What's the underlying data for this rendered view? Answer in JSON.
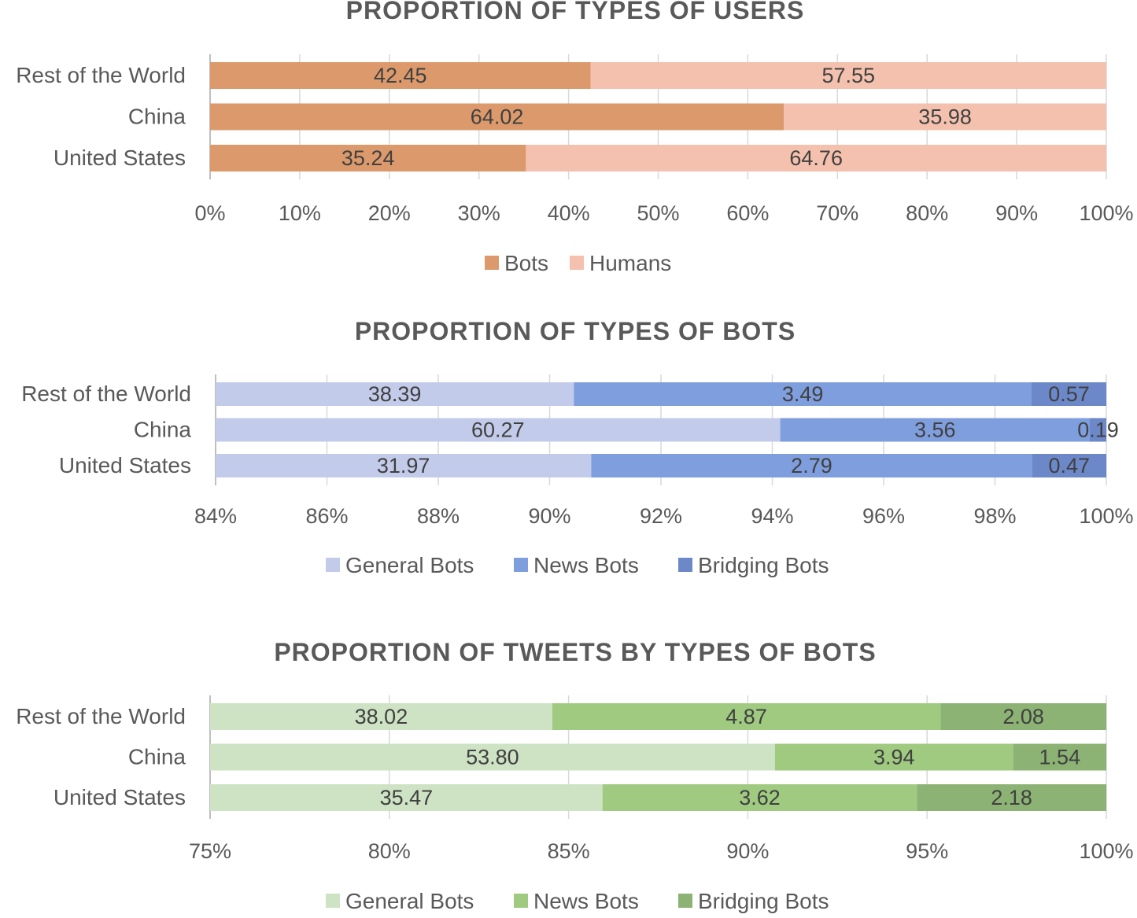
{
  "chart_data": [
    {
      "type": "bar",
      "orientation": "horizontal",
      "stacked": "100%",
      "title": "PROPORTION OF TYPES OF USERS",
      "categories": [
        "Rest of the World",
        "China",
        "United States"
      ],
      "series": [
        {
          "name": "Bots",
          "values": [
            42.45,
            64.02,
            35.24
          ],
          "color": "#dc9a6c"
        },
        {
          "name": "Humans",
          "values": [
            57.55,
            35.98,
            64.76
          ],
          "color": "#f3c1ad"
        }
      ],
      "xlim": [
        0,
        100
      ],
      "xticks": [
        "0%",
        "10%",
        "20%",
        "30%",
        "40%",
        "50%",
        "60%",
        "70%",
        "80%",
        "90%",
        "100%"
      ],
      "grid": true,
      "legend": "bottom"
    },
    {
      "type": "bar",
      "orientation": "horizontal",
      "stacked": "100%",
      "title": "PROPORTION OF TYPES OF BOTS",
      "categories": [
        "Rest of the World",
        "China",
        "United States"
      ],
      "series": [
        {
          "name": "General Bots",
          "values": [
            38.39,
            60.27,
            31.97
          ],
          "color": "#c3cbea"
        },
        {
          "name": "News Bots",
          "values": [
            3.49,
            3.56,
            2.79
          ],
          "color": "#7f9edd"
        },
        {
          "name": "Bridging Bots",
          "values": [
            0.57,
            0.19,
            0.47
          ],
          "color": "#6c88c9"
        }
      ],
      "xlim": [
        84,
        100
      ],
      "xticks": [
        "84%",
        "86%",
        "88%",
        "90%",
        "92%",
        "94%",
        "96%",
        "98%",
        "100%"
      ],
      "grid": true,
      "legend": "bottom"
    },
    {
      "type": "bar",
      "orientation": "horizontal",
      "stacked": "100%",
      "title": "PROPORTION OF TWEETS BY TYPES OF BOTS",
      "categories": [
        "Rest of the World",
        "China",
        "United States"
      ],
      "series": [
        {
          "name": "General Bots",
          "values": [
            38.02,
            53.8,
            35.47
          ],
          "labels": [
            "38.02",
            "53.80",
            "35.47"
          ],
          "color": "#cde3c4"
        },
        {
          "name": "News Bots",
          "values": [
            4.87,
            3.94,
            3.62
          ],
          "labels": [
            "4.87",
            "3.94",
            "3.62"
          ],
          "color": "#9fca80"
        },
        {
          "name": "Bridging Bots",
          "values": [
            2.08,
            1.54,
            2.18
          ],
          "labels": [
            "2.08",
            "1.54",
            "2.18"
          ],
          "color": "#8cb274"
        }
      ],
      "xlim": [
        75,
        100
      ],
      "xticks": [
        "75%",
        "80%",
        "85%",
        "90%",
        "95%",
        "100%"
      ],
      "grid": true,
      "legend": "bottom"
    }
  ]
}
